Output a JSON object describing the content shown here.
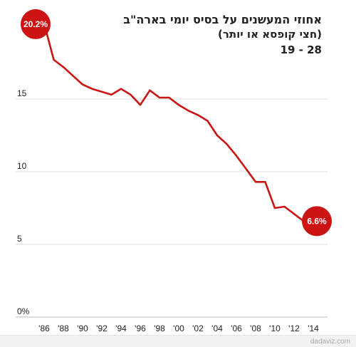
{
  "title_line1": "אחוזי המעשנים על בסיס יומי בארה\"ב",
  "title_line2": "(חצי קופסא או יותר)",
  "age_range": "19 - 28",
  "credit": "dadaviz.com",
  "chart_data": {
    "type": "line",
    "title": "אחוזי המעשנים על בסיס יומי בארה\"ב",
    "subtitle": "(חצי קופסא או יותר)",
    "xlabel": "",
    "ylabel": "",
    "x": [
      1986,
      1987,
      1988,
      1989,
      1990,
      1991,
      1992,
      1993,
      1994,
      1995,
      1996,
      1997,
      1998,
      1999,
      2000,
      2001,
      2002,
      2003,
      2004,
      2005,
      2006,
      2007,
      2008,
      2009,
      2010,
      2011,
      2012,
      2013,
      2014
    ],
    "series": [
      {
        "values": [
          20.2,
          17.7,
          17.2,
          16.6,
          16.0,
          15.7,
          15.5,
          15.3,
          15.7,
          15.3,
          14.6,
          15.6,
          15.1,
          15.1,
          14.6,
          14.2,
          13.9,
          13.5,
          12.5,
          11.9,
          11.1,
          10.2,
          9.3,
          9.3,
          7.5,
          7.6,
          7.1,
          6.6,
          6.6
        ]
      }
    ],
    "xlim": [
      1986,
      2014
    ],
    "ylim": [
      0,
      20
    ],
    "x_ticks": [
      "'86",
      "'88",
      "'90",
      "'92",
      "'94",
      "'96",
      "'98",
      "'00",
      "'02",
      "'04",
      "'06",
      "'08",
      "'10",
      "'12",
      "'14"
    ],
    "y_ticks": [
      "0%",
      "5",
      "10",
      "15"
    ],
    "y_tick_values": [
      0,
      5,
      10,
      15
    ],
    "annotations": [
      {
        "text": "20.2%",
        "index": 0
      },
      {
        "text": "6.6%",
        "index": 28
      }
    ],
    "line_color": "#cc1414",
    "bubble_color": "#cc1414",
    "grid": true
  }
}
